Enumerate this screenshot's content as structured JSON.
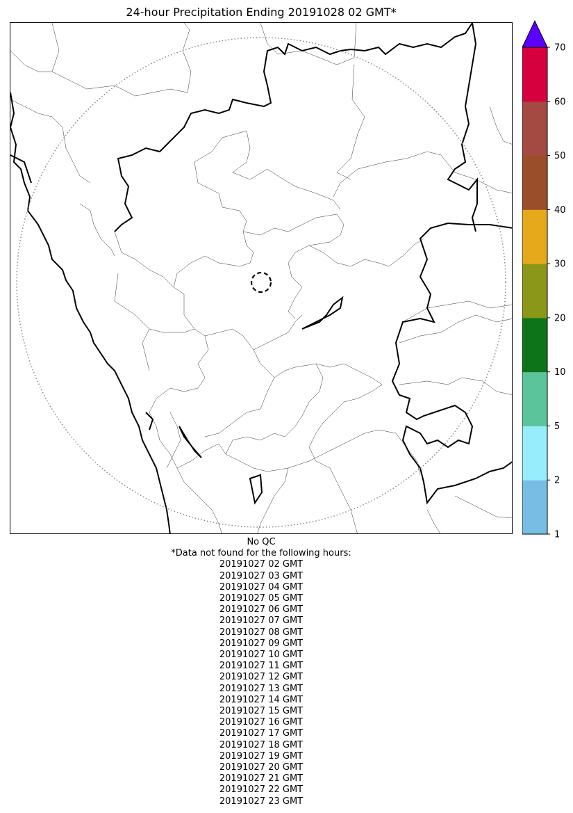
{
  "title": "24-hour Precipitation Ending 20191028 02 GMT*",
  "colorbar": {
    "tick_labels": [
      "1",
      "2",
      "5",
      "10",
      "20",
      "30",
      "40",
      "50",
      "60",
      "70"
    ],
    "bins": [
      {
        "color": "#76bee4"
      },
      {
        "color": "#97edfb"
      },
      {
        "color": "#5cc49b"
      },
      {
        "color": "#0e7419"
      },
      {
        "color": "#8b9719"
      },
      {
        "color": "#e6a91b"
      },
      {
        "color": "#9a4e2a"
      },
      {
        "color": "#a54a43"
      },
      {
        "color": "#d7003f"
      }
    ],
    "extend_color": "#5a00ff"
  },
  "footer": {
    "qc_note": "No QC",
    "missing_header": "*Data not found for the following hours:",
    "missing_hours": [
      "20191027 02 GMT",
      "20191027 03 GMT",
      "20191027 04 GMT",
      "20191027 05 GMT",
      "20191027 06 GMT",
      "20191027 07 GMT",
      "20191027 08 GMT",
      "20191027 09 GMT",
      "20191027 10 GMT",
      "20191027 11 GMT",
      "20191027 12 GMT",
      "20191027 13 GMT",
      "20191027 14 GMT",
      "20191027 15 GMT",
      "20191027 16 GMT",
      "20191027 17 GMT",
      "20191027 18 GMT",
      "20191027 19 GMT",
      "20191027 20 GMT",
      "20191027 21 GMT",
      "20191027 22 GMT",
      "20191027 23 GMT"
    ]
  }
}
